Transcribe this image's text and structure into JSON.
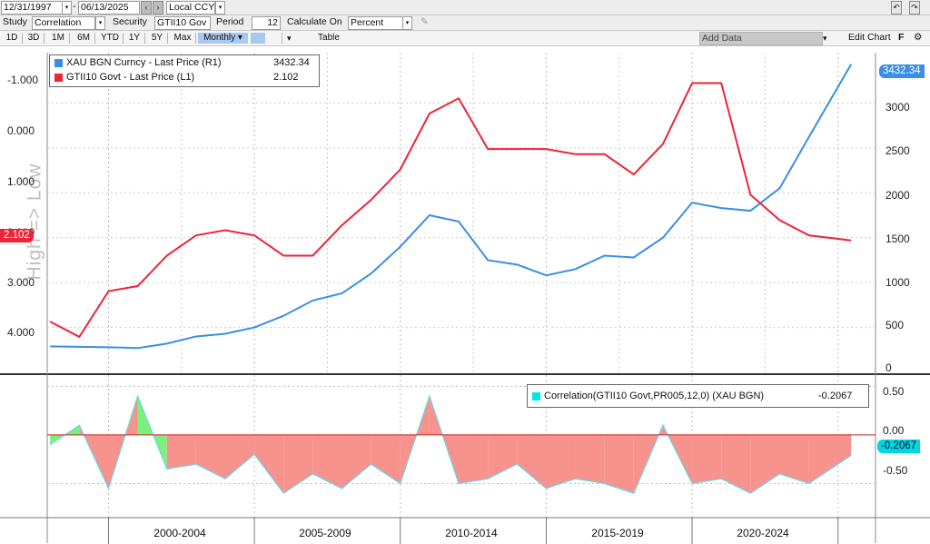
{
  "toolbar": {
    "start_date": "12/31/1997",
    "end_date": "06/13/2025",
    "currency": "Local CCY",
    "study_label": "Study",
    "study_value": "Correlation",
    "security_label": "Security",
    "security_value": "GTII10 Gov",
    "period_label": "Period",
    "period_value": "12",
    "calc_label": "Calculate On",
    "calc_value": "Percent",
    "tabs": [
      "1D",
      "3D",
      "1M",
      "6M",
      "YTD",
      "1Y",
      "5Y",
      "Max",
      "Monthly ▾",
      "",
      "",
      "Table"
    ],
    "add_data": "Add Data",
    "edit_chart": "Edit Chart"
  },
  "legend_top": {
    "items": [
      {
        "name": "XAU BGN Curncy - Last Price (R1)",
        "value": "3432.34",
        "color": "#3a8ee6"
      },
      {
        "name": "GTII10 Govt - Last Price (L1)",
        "value": "2.102",
        "color": "#ef2336"
      }
    ]
  },
  "legend_bottom": {
    "name": "Correlation(GTII10 Govt,PR005,12,0) (XAU BGN)",
    "value": "-0.2067",
    "color": "#00e5e5"
  },
  "left_axis_labels": [
    "-1.000",
    "0.000",
    "1.000",
    "2.000",
    "3.000",
    "4.000"
  ],
  "right_axis_labels": [
    "3000",
    "2500",
    "2000",
    "1500",
    "1000",
    "500",
    "0"
  ],
  "corr_axis_labels": [
    "0.50",
    "0.00",
    "-0.50"
  ],
  "period_labels": [
    "2000-2004",
    "2005-2009",
    "2010-2014",
    "2015-2019",
    "2020-2024"
  ],
  "left_axis_title": "High => Low",
  "tags": {
    "xau_last": "3432.34",
    "gtii_last": "2.102",
    "corr_last": "-0.2067"
  },
  "colors": {
    "gold": "#3a8ee6",
    "yield": "#ef2336",
    "corr_pos": "#7cf07c",
    "corr_neg": "#f7928d",
    "corr_line": "#67d9e8"
  },
  "chart_data": [
    {
      "type": "line",
      "title": "",
      "x": [
        1998,
        1999,
        2000,
        2001,
        2002,
        2003,
        2004,
        2005,
        2006,
        2007,
        2008,
        2009,
        2010,
        2011,
        2012,
        2013,
        2014,
        2015,
        2016,
        2017,
        2018,
        2019,
        2020,
        2021,
        2022,
        2023,
        2024,
        2025.45
      ],
      "series": [
        {
          "name": "XAU BGN Curncy - Last Price (R1)",
          "axis": "right",
          "values": [
            290,
            285,
            280,
            270,
            320,
            400,
            430,
            500,
            630,
            800,
            880,
            1100,
            1400,
            1750,
            1680,
            1250,
            1200,
            1080,
            1150,
            1300,
            1280,
            1500,
            1890,
            1830,
            1800,
            2050,
            2620,
            3432
          ]
        },
        {
          "name": "GTII10 Govt - Last Price (L1)",
          "axis": "left",
          "values": [
            3.7,
            4.0,
            3.1,
            3.0,
            2.4,
            2.0,
            1.9,
            2.0,
            2.4,
            2.4,
            1.8,
            1.3,
            0.7,
            -0.4,
            -0.7,
            0.3,
            0.3,
            0.3,
            0.4,
            0.4,
            0.8,
            0.2,
            -1.0,
            -1.0,
            1.2,
            1.7,
            2.0,
            2.1
          ]
        }
      ],
      "left_ylim": [
        4.7,
        -1.6
      ],
      "right_ylim": [
        0,
        3500
      ],
      "grid": true,
      "legend": "top-left"
    },
    {
      "type": "area",
      "title": "",
      "x": [
        1998,
        1999,
        2000,
        2001,
        2002,
        2003,
        2004,
        2005,
        2006,
        2007,
        2008,
        2009,
        2010,
        2011,
        2012,
        2013,
        2014,
        2015,
        2016,
        2017,
        2018,
        2019,
        2020,
        2021,
        2022,
        2023,
        2024,
        2025.45
      ],
      "series": [
        {
          "name": "Correlation(GTII10 Govt,PR005,12,0) (XAU BGN)",
          "values": [
            -0.1,
            0.1,
            -0.55,
            0.4,
            -0.35,
            -0.3,
            -0.45,
            -0.2,
            -0.6,
            -0.4,
            -0.55,
            -0.3,
            -0.5,
            0.4,
            -0.5,
            -0.45,
            -0.3,
            -0.55,
            -0.45,
            -0.5,
            -0.6,
            0.1,
            -0.5,
            -0.45,
            -0.6,
            -0.4,
            -0.5,
            -0.21
          ]
        }
      ],
      "ylim": [
        -0.85,
        0.55
      ],
      "grid": true,
      "legend": "top-right"
    }
  ]
}
